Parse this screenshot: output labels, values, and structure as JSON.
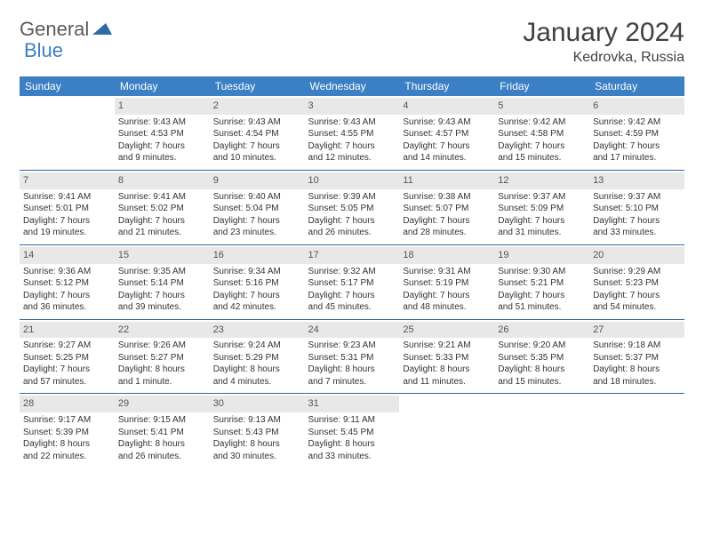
{
  "logo": {
    "text1": "General",
    "text2": "Blue"
  },
  "title": "January 2024",
  "location": "Kedrovka, Russia",
  "colors": {
    "header_bg": "#3b7fc4",
    "header_text": "#ffffff",
    "daynum_bg": "#e8e8e8",
    "daynum_text": "#555555",
    "body_text": "#333333",
    "rule": "#2e6aa8"
  },
  "weekdays": [
    "Sunday",
    "Monday",
    "Tuesday",
    "Wednesday",
    "Thursday",
    "Friday",
    "Saturday"
  ],
  "weeks": [
    [
      null,
      {
        "n": "1",
        "l1": "Sunrise: 9:43 AM",
        "l2": "Sunset: 4:53 PM",
        "l3": "Daylight: 7 hours",
        "l4": "and 9 minutes."
      },
      {
        "n": "2",
        "l1": "Sunrise: 9:43 AM",
        "l2": "Sunset: 4:54 PM",
        "l3": "Daylight: 7 hours",
        "l4": "and 10 minutes."
      },
      {
        "n": "3",
        "l1": "Sunrise: 9:43 AM",
        "l2": "Sunset: 4:55 PM",
        "l3": "Daylight: 7 hours",
        "l4": "and 12 minutes."
      },
      {
        "n": "4",
        "l1": "Sunrise: 9:43 AM",
        "l2": "Sunset: 4:57 PM",
        "l3": "Daylight: 7 hours",
        "l4": "and 14 minutes."
      },
      {
        "n": "5",
        "l1": "Sunrise: 9:42 AM",
        "l2": "Sunset: 4:58 PM",
        "l3": "Daylight: 7 hours",
        "l4": "and 15 minutes."
      },
      {
        "n": "6",
        "l1": "Sunrise: 9:42 AM",
        "l2": "Sunset: 4:59 PM",
        "l3": "Daylight: 7 hours",
        "l4": "and 17 minutes."
      }
    ],
    [
      {
        "n": "7",
        "l1": "Sunrise: 9:41 AM",
        "l2": "Sunset: 5:01 PM",
        "l3": "Daylight: 7 hours",
        "l4": "and 19 minutes."
      },
      {
        "n": "8",
        "l1": "Sunrise: 9:41 AM",
        "l2": "Sunset: 5:02 PM",
        "l3": "Daylight: 7 hours",
        "l4": "and 21 minutes."
      },
      {
        "n": "9",
        "l1": "Sunrise: 9:40 AM",
        "l2": "Sunset: 5:04 PM",
        "l3": "Daylight: 7 hours",
        "l4": "and 23 minutes."
      },
      {
        "n": "10",
        "l1": "Sunrise: 9:39 AM",
        "l2": "Sunset: 5:05 PM",
        "l3": "Daylight: 7 hours",
        "l4": "and 26 minutes."
      },
      {
        "n": "11",
        "l1": "Sunrise: 9:38 AM",
        "l2": "Sunset: 5:07 PM",
        "l3": "Daylight: 7 hours",
        "l4": "and 28 minutes."
      },
      {
        "n": "12",
        "l1": "Sunrise: 9:37 AM",
        "l2": "Sunset: 5:09 PM",
        "l3": "Daylight: 7 hours",
        "l4": "and 31 minutes."
      },
      {
        "n": "13",
        "l1": "Sunrise: 9:37 AM",
        "l2": "Sunset: 5:10 PM",
        "l3": "Daylight: 7 hours",
        "l4": "and 33 minutes."
      }
    ],
    [
      {
        "n": "14",
        "l1": "Sunrise: 9:36 AM",
        "l2": "Sunset: 5:12 PM",
        "l3": "Daylight: 7 hours",
        "l4": "and 36 minutes."
      },
      {
        "n": "15",
        "l1": "Sunrise: 9:35 AM",
        "l2": "Sunset: 5:14 PM",
        "l3": "Daylight: 7 hours",
        "l4": "and 39 minutes."
      },
      {
        "n": "16",
        "l1": "Sunrise: 9:34 AM",
        "l2": "Sunset: 5:16 PM",
        "l3": "Daylight: 7 hours",
        "l4": "and 42 minutes."
      },
      {
        "n": "17",
        "l1": "Sunrise: 9:32 AM",
        "l2": "Sunset: 5:17 PM",
        "l3": "Daylight: 7 hours",
        "l4": "and 45 minutes."
      },
      {
        "n": "18",
        "l1": "Sunrise: 9:31 AM",
        "l2": "Sunset: 5:19 PM",
        "l3": "Daylight: 7 hours",
        "l4": "and 48 minutes."
      },
      {
        "n": "19",
        "l1": "Sunrise: 9:30 AM",
        "l2": "Sunset: 5:21 PM",
        "l3": "Daylight: 7 hours",
        "l4": "and 51 minutes."
      },
      {
        "n": "20",
        "l1": "Sunrise: 9:29 AM",
        "l2": "Sunset: 5:23 PM",
        "l3": "Daylight: 7 hours",
        "l4": "and 54 minutes."
      }
    ],
    [
      {
        "n": "21",
        "l1": "Sunrise: 9:27 AM",
        "l2": "Sunset: 5:25 PM",
        "l3": "Daylight: 7 hours",
        "l4": "and 57 minutes."
      },
      {
        "n": "22",
        "l1": "Sunrise: 9:26 AM",
        "l2": "Sunset: 5:27 PM",
        "l3": "Daylight: 8 hours",
        "l4": "and 1 minute."
      },
      {
        "n": "23",
        "l1": "Sunrise: 9:24 AM",
        "l2": "Sunset: 5:29 PM",
        "l3": "Daylight: 8 hours",
        "l4": "and 4 minutes."
      },
      {
        "n": "24",
        "l1": "Sunrise: 9:23 AM",
        "l2": "Sunset: 5:31 PM",
        "l3": "Daylight: 8 hours",
        "l4": "and 7 minutes."
      },
      {
        "n": "25",
        "l1": "Sunrise: 9:21 AM",
        "l2": "Sunset: 5:33 PM",
        "l3": "Daylight: 8 hours",
        "l4": "and 11 minutes."
      },
      {
        "n": "26",
        "l1": "Sunrise: 9:20 AM",
        "l2": "Sunset: 5:35 PM",
        "l3": "Daylight: 8 hours",
        "l4": "and 15 minutes."
      },
      {
        "n": "27",
        "l1": "Sunrise: 9:18 AM",
        "l2": "Sunset: 5:37 PM",
        "l3": "Daylight: 8 hours",
        "l4": "and 18 minutes."
      }
    ],
    [
      {
        "n": "28",
        "l1": "Sunrise: 9:17 AM",
        "l2": "Sunset: 5:39 PM",
        "l3": "Daylight: 8 hours",
        "l4": "and 22 minutes."
      },
      {
        "n": "29",
        "l1": "Sunrise: 9:15 AM",
        "l2": "Sunset: 5:41 PM",
        "l3": "Daylight: 8 hours",
        "l4": "and 26 minutes."
      },
      {
        "n": "30",
        "l1": "Sunrise: 9:13 AM",
        "l2": "Sunset: 5:43 PM",
        "l3": "Daylight: 8 hours",
        "l4": "and 30 minutes."
      },
      {
        "n": "31",
        "l1": "Sunrise: 9:11 AM",
        "l2": "Sunset: 5:45 PM",
        "l3": "Daylight: 8 hours",
        "l4": "and 33 minutes."
      },
      null,
      null,
      null
    ]
  ]
}
